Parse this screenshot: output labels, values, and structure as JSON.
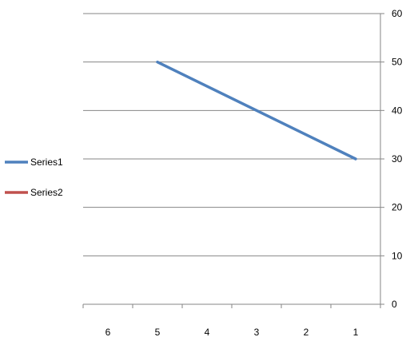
{
  "chart_data": {
    "type": "line",
    "categories": [
      "6",
      "5",
      "4",
      "3",
      "2",
      "1"
    ],
    "x_axis_reversed": true,
    "y_axis_position": "right",
    "ylim": [
      0,
      60
    ],
    "yticks": [
      0,
      10,
      20,
      30,
      40,
      50,
      60
    ],
    "grid": true,
    "legend_position": "left",
    "series": [
      {
        "name": "Series1",
        "color": "#4f81bd",
        "values": [
          null,
          50,
          null,
          null,
          null,
          30
        ]
      },
      {
        "name": "Series2",
        "color": "#c0504d",
        "values": [
          null,
          null,
          null,
          null,
          null,
          null
        ]
      }
    ]
  }
}
